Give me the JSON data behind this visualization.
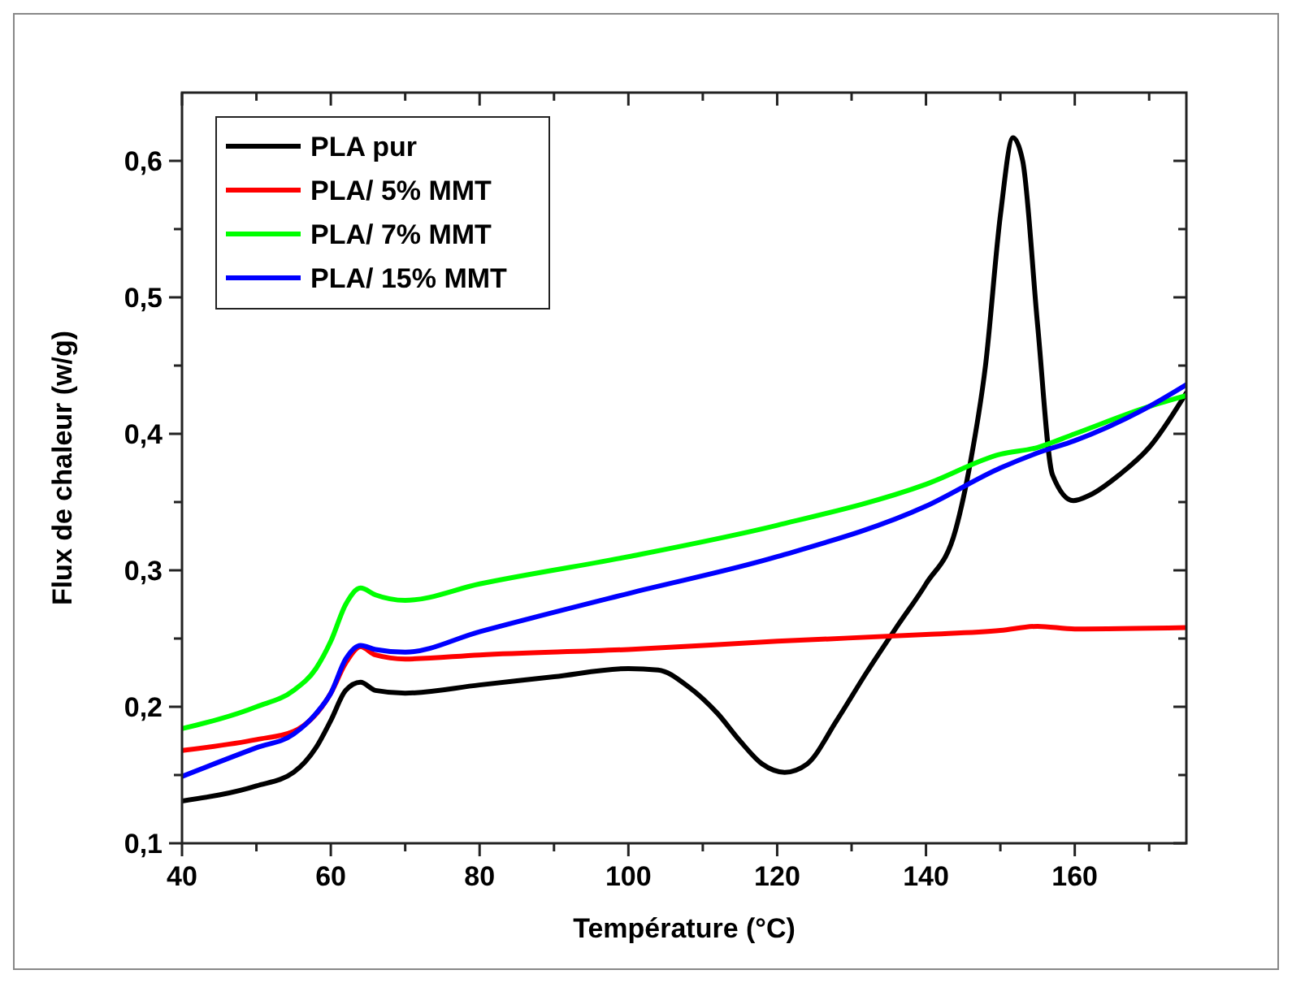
{
  "chart_data": {
    "type": "line",
    "xlabel": "Température (°C)",
    "ylabel": "Flux de chaleur (w/g)",
    "xlim": [
      40,
      175
    ],
    "ylim": [
      0.1,
      0.65
    ],
    "xticks": [
      {
        "value": 40,
        "label": "40"
      },
      {
        "value": 50,
        "label": null
      },
      {
        "value": 60,
        "label": "60"
      },
      {
        "value": 70,
        "label": null
      },
      {
        "value": 80,
        "label": "80"
      },
      {
        "value": 90,
        "label": null
      },
      {
        "value": 100,
        "label": "100"
      },
      {
        "value": 110,
        "label": null
      },
      {
        "value": 120,
        "label": "120"
      },
      {
        "value": 130,
        "label": null
      },
      {
        "value": 140,
        "label": "140"
      },
      {
        "value": 150,
        "label": null
      },
      {
        "value": 160,
        "label": "160"
      },
      {
        "value": 170,
        "label": null
      }
    ],
    "yticks": [
      {
        "value": 0.1,
        "label": "0,1"
      },
      {
        "value": 0.15,
        "label": null
      },
      {
        "value": 0.2,
        "label": "0,2"
      },
      {
        "value": 0.25,
        "label": null
      },
      {
        "value": 0.3,
        "label": "0,3"
      },
      {
        "value": 0.35,
        "label": null
      },
      {
        "value": 0.4,
        "label": "0,4"
      },
      {
        "value": 0.45,
        "label": null
      },
      {
        "value": 0.5,
        "label": "0,5"
      },
      {
        "value": 0.55,
        "label": null
      },
      {
        "value": 0.6,
        "label": "0,6"
      }
    ],
    "grid": false,
    "legend": "top left",
    "marker": "none",
    "line_style": "solid",
    "series": [
      {
        "name": "PLA pur",
        "color": "#000000",
        "x": [
          40,
          50,
          55,
          58,
          60,
          62,
          64,
          66,
          70,
          80,
          90,
          100,
          104,
          108,
          112,
          115,
          118,
          121,
          124,
          128,
          132,
          136,
          140,
          144,
          146,
          148,
          150,
          151.7,
          153,
          155,
          157,
          159.8,
          162,
          166,
          170,
          175
        ],
        "values": [
          0.131,
          0.142,
          0.152,
          0.17,
          0.19,
          0.212,
          0.218,
          0.212,
          0.21,
          0.216,
          0.222,
          0.228,
          0.227,
          0.215,
          0.195,
          0.175,
          0.158,
          0.152,
          0.158,
          0.19,
          0.225,
          0.258,
          0.29,
          0.33,
          0.38,
          0.45,
          0.56,
          0.617,
          0.6,
          0.48,
          0.37,
          0.351,
          0.355,
          0.37,
          0.39,
          0.43
        ]
      },
      {
        "name": "PLA/ 5% MMT",
        "color": "#ff0000",
        "x": [
          40,
          50,
          55,
          60,
          62,
          64,
          66,
          70,
          80,
          100,
          120,
          140,
          150,
          155,
          160,
          175
        ],
        "values": [
          0.168,
          0.176,
          0.182,
          0.21,
          0.232,
          0.244,
          0.238,
          0.235,
          0.238,
          0.242,
          0.248,
          0.253,
          0.256,
          0.259,
          0.257,
          0.258
        ]
      },
      {
        "name": "PLA/ 7% MMT",
        "color": "#00ff00",
        "x": [
          40,
          50,
          55,
          58,
          60,
          62,
          64,
          66,
          70,
          80,
          100,
          120,
          140,
          150,
          155,
          160,
          170,
          175
        ],
        "values": [
          0.184,
          0.2,
          0.212,
          0.228,
          0.248,
          0.275,
          0.287,
          0.282,
          0.278,
          0.29,
          0.31,
          0.333,
          0.363,
          0.385,
          0.39,
          0.4,
          0.42,
          0.428
        ]
      },
      {
        "name": "PLA/ 15% MMT",
        "color": "#0000ff",
        "x": [
          40,
          50,
          55,
          58,
          60,
          62,
          64,
          66,
          70,
          80,
          100,
          120,
          140,
          150,
          155,
          160,
          170,
          175
        ],
        "values": [
          0.149,
          0.17,
          0.18,
          0.195,
          0.21,
          0.235,
          0.245,
          0.242,
          0.24,
          0.255,
          0.283,
          0.31,
          0.347,
          0.375,
          0.386,
          0.395,
          0.42,
          0.436
        ]
      }
    ]
  }
}
